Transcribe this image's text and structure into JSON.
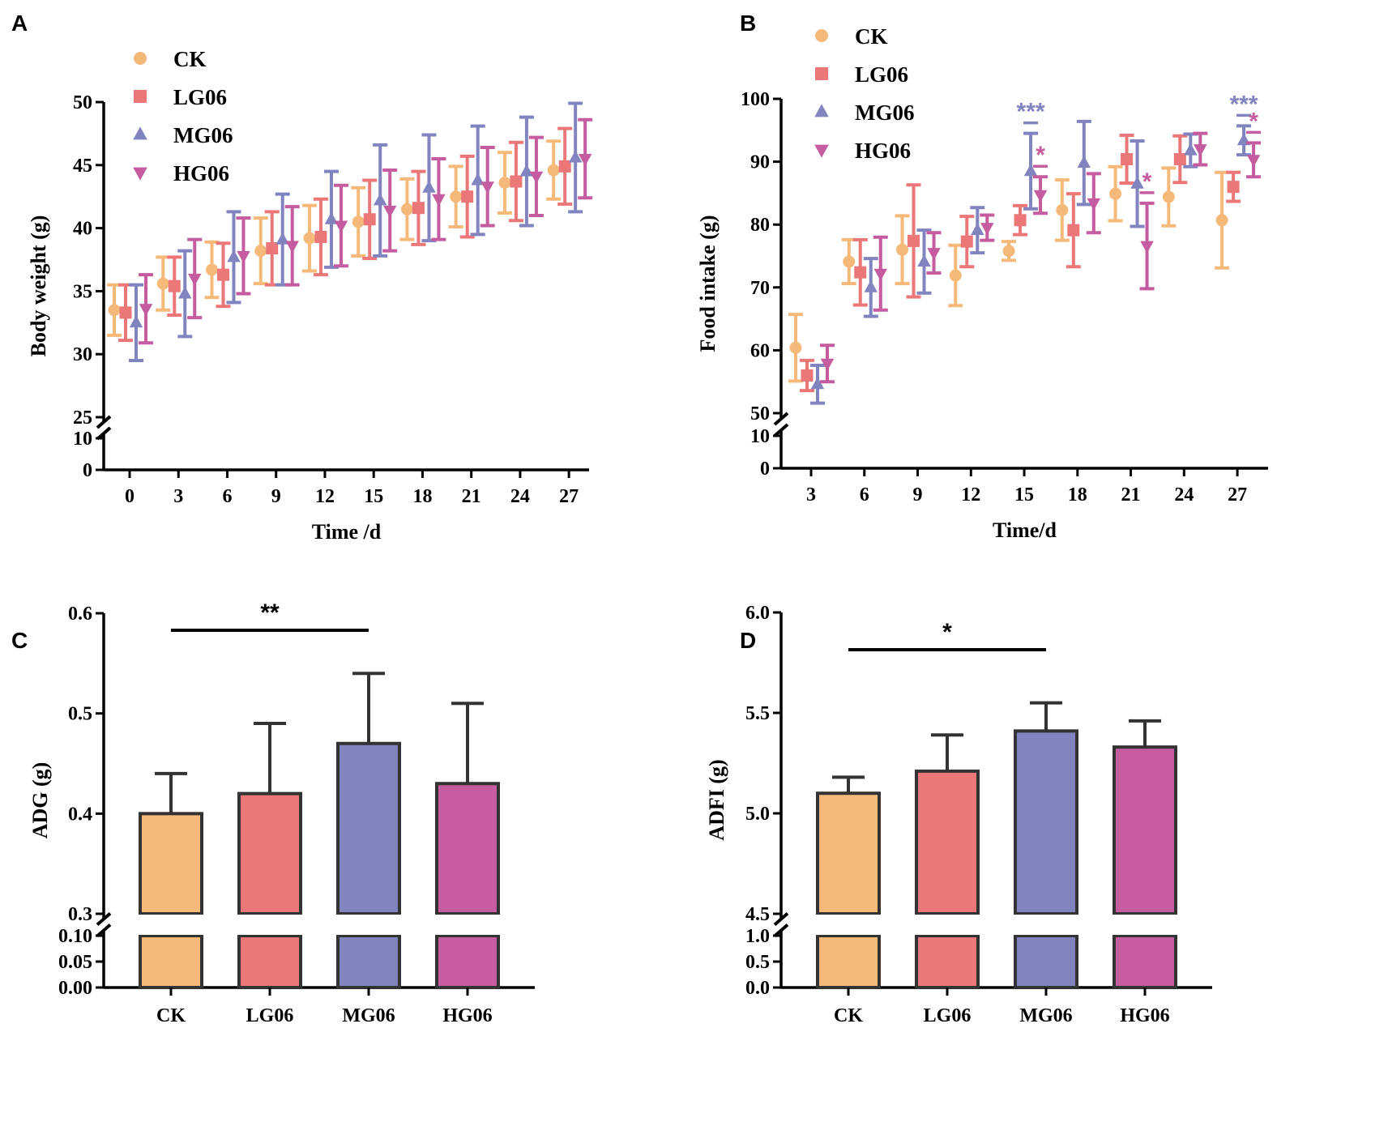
{
  "colors": {
    "CK": "#F5B97A",
    "LG06": "#EB7778",
    "MG06": "#8284C0",
    "HG06": "#C45C9F",
    "axis": "#000000"
  },
  "groups": [
    "CK",
    "LG06",
    "MG06",
    "HG06"
  ],
  "markers": {
    "CK": "circle-icon",
    "LG06": "square-icon",
    "MG06": "triangle-up-icon",
    "HG06": "triangle-down-icon"
  },
  "chart_data": [
    {
      "panel": "A",
      "type": "scatter",
      "xlabel": "Time /d",
      "ylabel": "Body  weight (g)",
      "x": [
        0,
        3,
        6,
        9,
        12,
        15,
        18,
        21,
        24,
        27
      ],
      "x_ticks": [
        "0",
        "3",
        "6",
        "9",
        "12",
        "15",
        "18",
        "21",
        "24",
        "27"
      ],
      "y_ticks_upper": [
        "25",
        "30",
        "35",
        "40",
        "45",
        "50"
      ],
      "y_ticks_lower": [
        "0",
        "10"
      ],
      "ylim_upper": [
        25,
        50
      ],
      "ylim_lower": [
        0,
        10
      ],
      "legend": [
        "CK",
        "LG06",
        "MG06",
        "HG06"
      ],
      "series": [
        {
          "name": "CK",
          "values": [
            33.5,
            35.6,
            36.7,
            38.2,
            39.2,
            40.5,
            41.5,
            42.5,
            43.6,
            44.6
          ],
          "errors": [
            2.0,
            2.1,
            2.2,
            2.6,
            2.6,
            2.7,
            2.4,
            2.4,
            2.4,
            2.3
          ]
        },
        {
          "name": "LG06",
          "values": [
            33.3,
            35.4,
            36.3,
            38.4,
            39.3,
            40.7,
            41.6,
            42.5,
            43.7,
            44.9
          ],
          "errors": [
            2.2,
            2.3,
            2.5,
            2.9,
            3.0,
            3.1,
            2.9,
            3.2,
            3.1,
            3.0
          ]
        },
        {
          "name": "MG06",
          "values": [
            32.5,
            34.8,
            37.7,
            39.1,
            40.7,
            42.2,
            43.2,
            43.8,
            44.5,
            45.6
          ],
          "errors": [
            3.0,
            3.4,
            3.6,
            3.6,
            3.8,
            4.4,
            4.2,
            4.3,
            4.3,
            4.3
          ]
        },
        {
          "name": "HG06",
          "values": [
            33.6,
            36.0,
            37.8,
            38.6,
            40.2,
            41.4,
            42.3,
            43.3,
            44.1,
            45.5
          ],
          "errors": [
            2.7,
            3.1,
            3.0,
            3.1,
            3.2,
            3.2,
            3.2,
            3.1,
            3.1,
            3.1
          ]
        }
      ]
    },
    {
      "panel": "B",
      "type": "scatter",
      "xlabel": "Time/d",
      "ylabel": "Food intake (g)",
      "x": [
        3,
        6,
        9,
        12,
        15,
        18,
        21,
        24,
        27
      ],
      "x_ticks": [
        "3",
        "6",
        "9",
        "12",
        "15",
        "18",
        "21",
        "24",
        "27"
      ],
      "y_ticks_upper": [
        "50",
        "60",
        "70",
        "80",
        "90",
        "100"
      ],
      "y_ticks_lower": [
        "0",
        "10"
      ],
      "ylim_upper": [
        50,
        100
      ],
      "ylim_lower": [
        0,
        10
      ],
      "legend": [
        "CK",
        "LG06",
        "MG06",
        "HG06"
      ],
      "series": [
        {
          "name": "CK",
          "values": [
            60.4,
            74.1,
            76.0,
            71.9,
            75.8,
            82.3,
            84.9,
            84.4,
            80.7
          ],
          "errors": [
            5.3,
            3.5,
            5.4,
            4.8,
            1.5,
            4.8,
            4.3,
            4.6,
            7.6
          ]
        },
        {
          "name": "LG06",
          "values": [
            56.0,
            72.4,
            77.4,
            77.3,
            80.7,
            79.1,
            90.4,
            90.4,
            86.0
          ],
          "errors": [
            2.4,
            5.2,
            8.9,
            4.0,
            2.3,
            5.8,
            3.8,
            3.7,
            2.3
          ]
        },
        {
          "name": "MG06",
          "values": [
            54.6,
            70.0,
            74.1,
            79.1,
            88.5,
            89.8,
            86.5,
            91.8,
            93.4
          ],
          "errors": [
            3.0,
            4.6,
            5.0,
            3.6,
            6.0,
            6.6,
            6.8,
            2.6,
            2.3
          ]
        },
        {
          "name": "HG06",
          "values": [
            57.9,
            72.2,
            75.5,
            79.5,
            84.7,
            83.4,
            76.6,
            92.0,
            90.3
          ],
          "errors": [
            2.9,
            5.8,
            3.2,
            2.0,
            2.9,
            4.7,
            6.8,
            2.5,
            2.7
          ]
        }
      ],
      "annotations": [
        {
          "x": 15,
          "group": "MG06",
          "text": "***"
        },
        {
          "x": 15,
          "group": "HG06",
          "text": "*"
        },
        {
          "x": 21,
          "group": "HG06",
          "text": "*"
        },
        {
          "x": 27,
          "group": "MG06",
          "text": "***"
        },
        {
          "x": 27,
          "group": "HG06",
          "text": "*"
        }
      ]
    },
    {
      "panel": "C",
      "type": "bar",
      "xlabel": "",
      "ylabel": "ADG (g)",
      "categories": [
        "CK",
        "LG06",
        "MG06",
        "HG06"
      ],
      "values": [
        0.4,
        0.42,
        0.47,
        0.43
      ],
      "errors": [
        0.04,
        0.07,
        0.07,
        0.08
      ],
      "y_ticks_upper": [
        "0.3",
        "0.4",
        "0.5",
        "0.6"
      ],
      "y_ticks_lower": [
        "0.00",
        "0.05",
        "0.10"
      ],
      "ylim_upper": [
        0.3,
        0.6
      ],
      "ylim_lower": [
        0,
        0.1
      ],
      "significance": {
        "from": "CK",
        "to": "MG06",
        "text": "**"
      }
    },
    {
      "panel": "D",
      "type": "bar",
      "xlabel": "",
      "ylabel": "ADFI (g)",
      "categories": [
        "CK",
        "LG06",
        "MG06",
        "HG06"
      ],
      "values": [
        5.1,
        5.21,
        5.41,
        5.33
      ],
      "errors": [
        0.08,
        0.18,
        0.14,
        0.13
      ],
      "y_ticks_upper": [
        "4.5",
        "5.0",
        "5.5",
        "6.0"
      ],
      "y_ticks_lower": [
        "0.0",
        "0.5",
        "1.0"
      ],
      "ylim_upper": [
        4.5,
        6.0
      ],
      "ylim_lower": [
        0,
        1.0
      ],
      "significance": {
        "from": "CK",
        "to": "MG06",
        "text": "*"
      }
    }
  ]
}
